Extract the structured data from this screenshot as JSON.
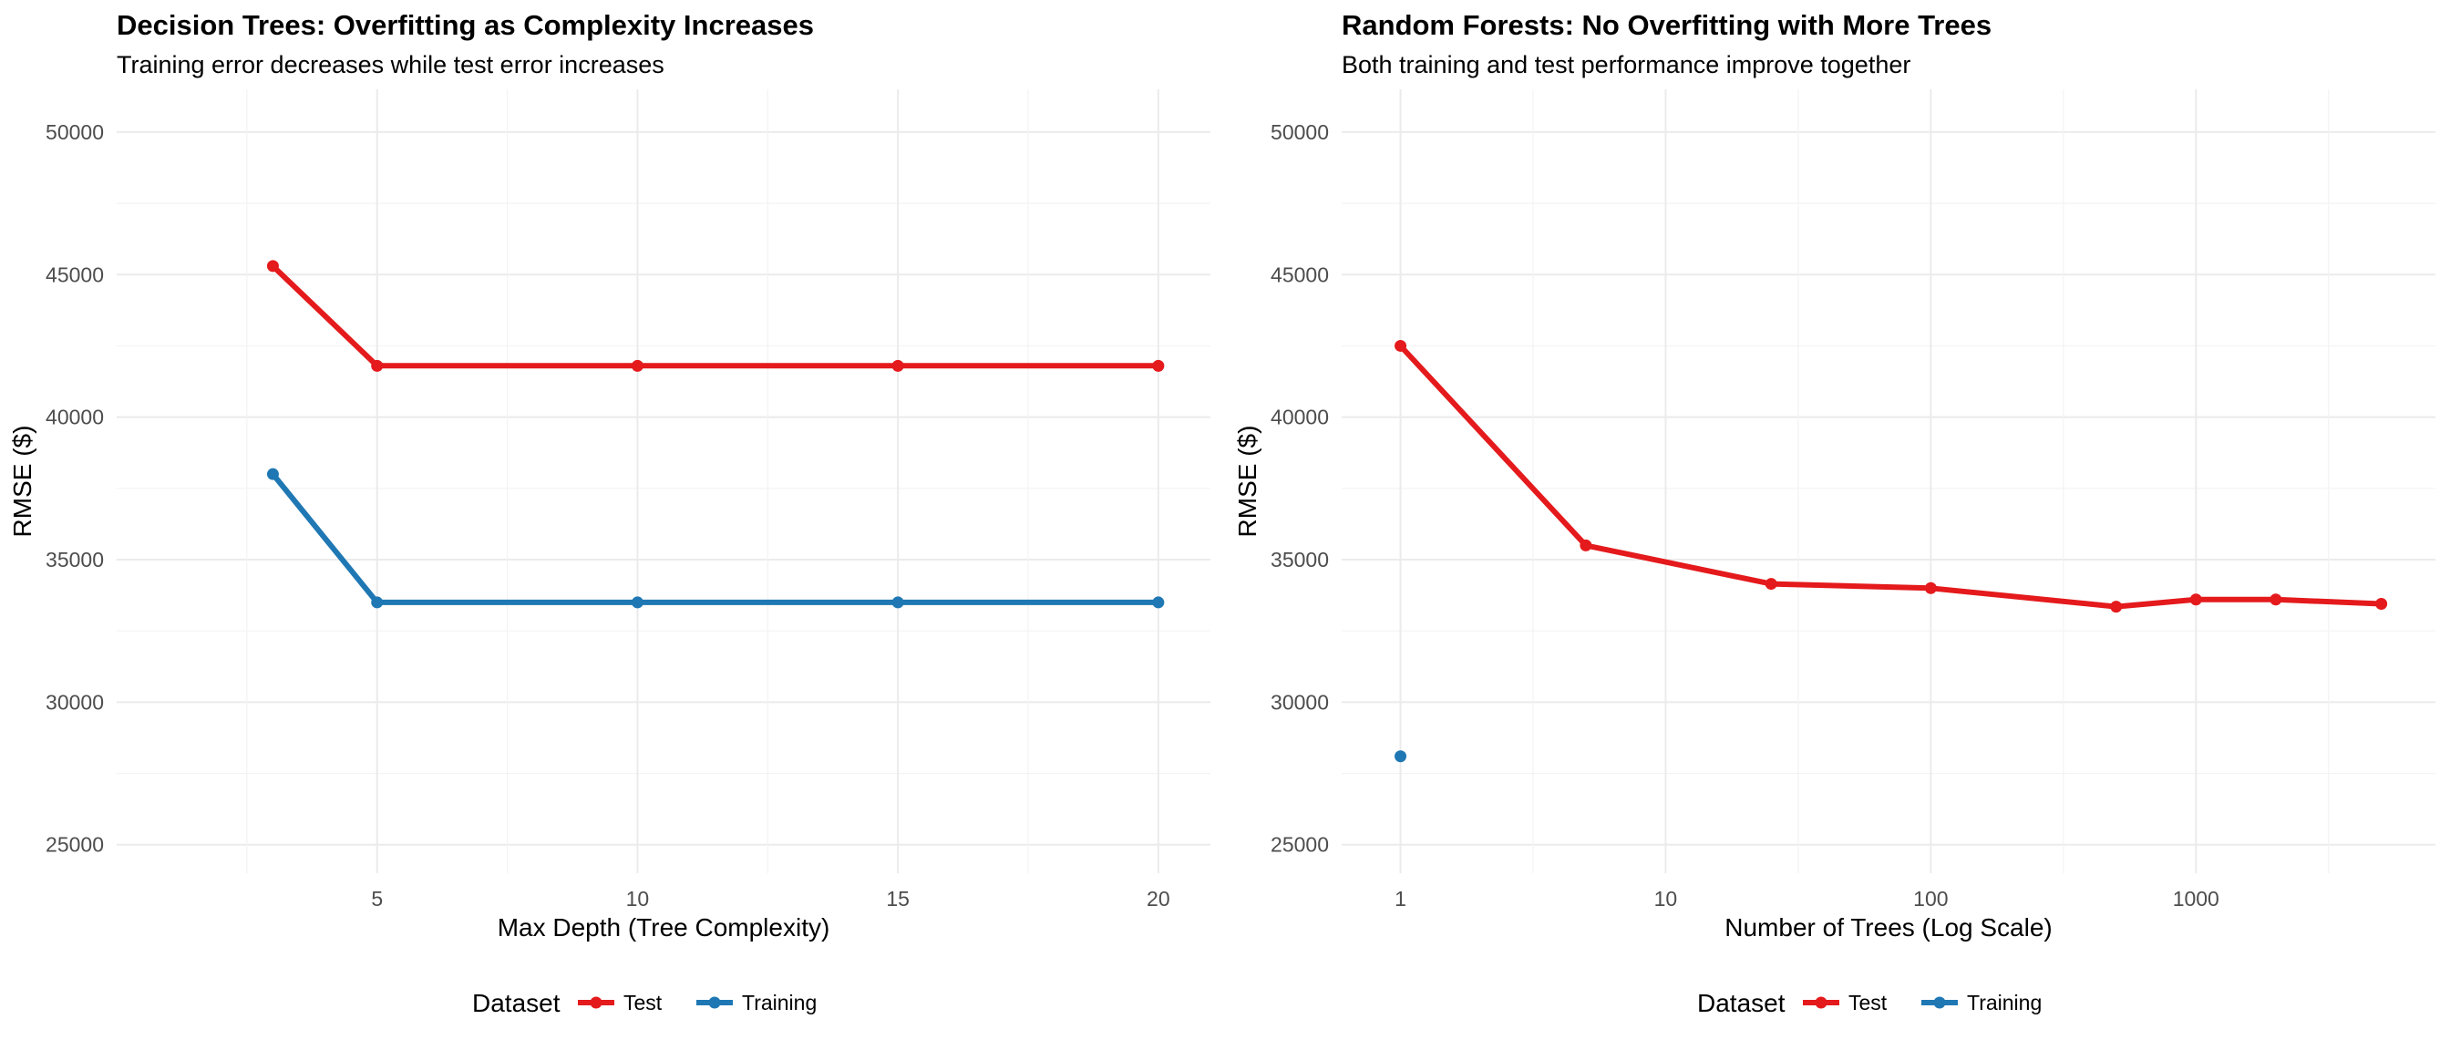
{
  "chart_data": [
    {
      "type": "line",
      "title": "Decision Trees: Overfitting as Complexity Increases",
      "subtitle": "Training error decreases while test error increases",
      "xlabel": "Max Depth (Tree Complexity)",
      "ylabel": "RMSE ($)",
      "x_scale": "linear",
      "xlim": [
        0,
        21
      ],
      "ylim": [
        24000,
        51500
      ],
      "x_ticks": [
        5,
        10,
        15,
        20
      ],
      "x_tick_labels": [
        "5",
        "10",
        "15",
        "20"
      ],
      "y_ticks": [
        25000,
        30000,
        35000,
        40000,
        45000,
        50000
      ],
      "y_tick_labels": [
        "25000",
        "30000",
        "35000",
        "40000",
        "45000",
        "50000"
      ],
      "grid": true,
      "legend": {
        "title": "Dataset",
        "position": "bottom",
        "entries": [
          "Test",
          "Training"
        ]
      },
      "series": [
        {
          "name": "Test",
          "color": "#E41A1C",
          "x": [
            3,
            5,
            10,
            15,
            20
          ],
          "y": [
            45300,
            41800,
            41800,
            41800,
            41800
          ]
        },
        {
          "name": "Training",
          "color": "#1F78B4",
          "x": [
            3,
            5,
            10,
            15,
            20
          ],
          "y": [
            38000,
            33500,
            33500,
            33500,
            33500
          ]
        }
      ]
    },
    {
      "type": "line",
      "title": "Random Forests: No Overfitting with More Trees",
      "subtitle": "Both training and test performance improve together",
      "xlabel": "Number of Trees (Log Scale)",
      "ylabel": "RMSE ($)",
      "x_scale": "log10",
      "xlim": [
        0.6,
        8000
      ],
      "ylim": [
        24000,
        51500
      ],
      "x_ticks": [
        1,
        10,
        100,
        1000
      ],
      "x_tick_labels": [
        "1",
        "10",
        "100",
        "1000"
      ],
      "y_ticks": [
        25000,
        30000,
        35000,
        40000,
        45000,
        50000
      ],
      "y_tick_labels": [
        "25000",
        "30000",
        "35000",
        "40000",
        "45000",
        "50000"
      ],
      "grid": true,
      "legend": {
        "title": "Dataset",
        "position": "bottom",
        "entries": [
          "Test",
          "Training"
        ]
      },
      "series": [
        {
          "name": "Test",
          "color": "#E41A1C",
          "x": [
            1,
            5,
            25,
            100,
            500,
            1000,
            2000,
            5000
          ],
          "y": [
            42500,
            35500,
            34150,
            34000,
            33350,
            33600,
            33600,
            33450
          ]
        },
        {
          "name": "Training",
          "color": "#1F78B4",
          "x": [
            1
          ],
          "y": [
            28100
          ]
        }
      ]
    }
  ]
}
